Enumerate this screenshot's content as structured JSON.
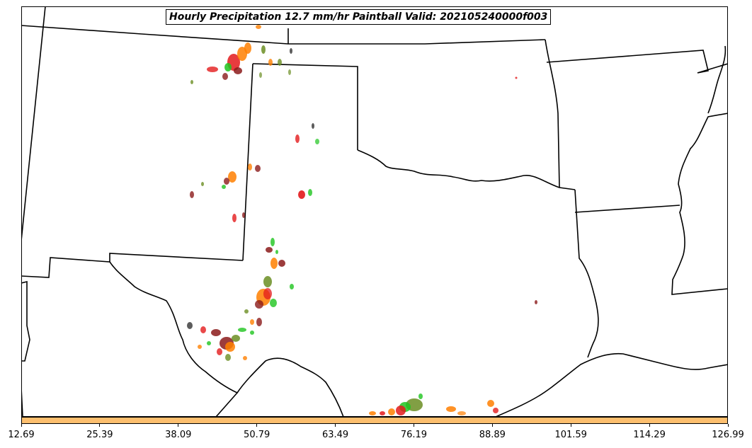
{
  "title": "Hourly Precipitation 12.7 mm/hr Paintball Valid: 202105240000f003",
  "colorbar": {
    "color": "#fdbf6f",
    "ticks": [
      "12.69",
      "25.39",
      "38.09",
      "50.79",
      "63.49",
      "76.19",
      "88.89",
      "101.59",
      "114.29",
      "126.99"
    ]
  },
  "colors": {
    "member_red": "#e31a1c",
    "member_orange": "#ff7f00",
    "member_green": "#1ec41e",
    "member_olive": "#6b8e23",
    "member_darkred": "#8b1a1a"
  }
}
